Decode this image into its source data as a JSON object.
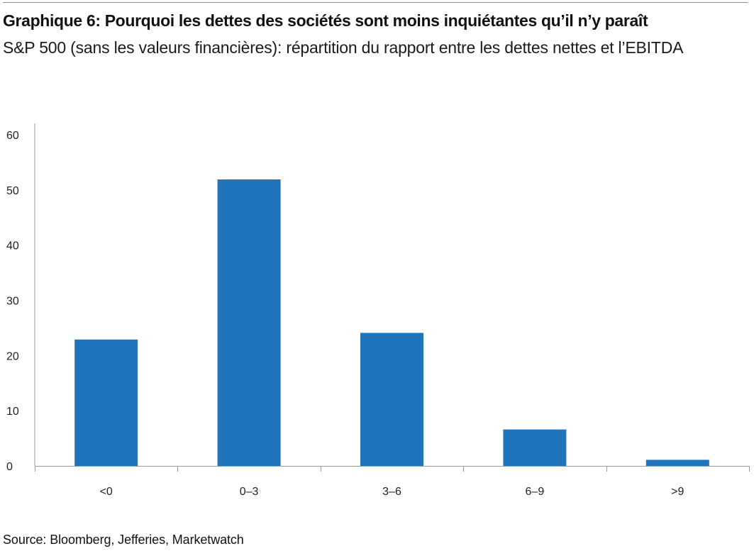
{
  "header": {
    "title": "Graphique 6: Pourquoi les dettes des sociétés sont moins inquiétantes qu’il n’y paraît",
    "subtitle": "S&P 500 (sans les valeurs financières): répartition du rapport entre les dettes nettes et l’EBITDA"
  },
  "footer": {
    "source": "Source: Bloomberg, Jefferies, Marketwatch"
  },
  "colors": {
    "bar": "#1f74bc",
    "axis": "#9a9a9a"
  },
  "chart_data": {
    "type": "bar",
    "title": "Graphique 6: Pourquoi les dettes des sociétés sont moins inquiétantes qu’il n’y paraît",
    "subtitle": "S&P 500 (sans les valeurs financières): répartition du rapport entre les dettes nettes et l’EBITDA",
    "categories": [
      "<0",
      "0–3",
      "3–6",
      "6–9",
      ">9"
    ],
    "values": [
      22.9,
      51.9,
      24.1,
      6.6,
      1.1
    ],
    "ylim": [
      0,
      60
    ],
    "yticks": [
      0,
      10,
      20,
      30,
      40,
      50,
      60
    ],
    "xlabel": "",
    "ylabel": "",
    "grid": false,
    "legend": "none"
  }
}
